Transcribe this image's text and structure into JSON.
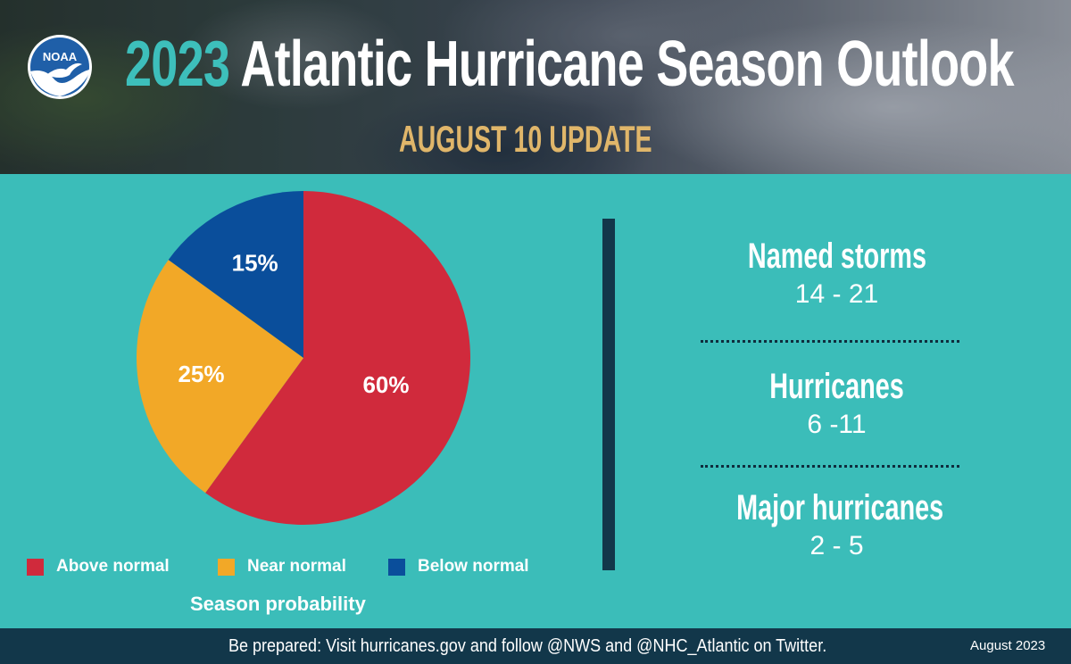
{
  "header": {
    "logo_text": "NOAA",
    "title_year": "2023",
    "title_rest": "Atlantic Hurricane Season Outlook",
    "subtitle": "AUGUST 10 UPDATE"
  },
  "chart_data": {
    "type": "pie",
    "title": "Season probability",
    "slices": [
      {
        "label": "Above normal",
        "value": 60,
        "display": "60%",
        "color": "#d02a3c"
      },
      {
        "label": "Near normal",
        "value": 25,
        "display": "25%",
        "color": "#f2a827"
      },
      {
        "label": "Below normal",
        "value": 15,
        "display": "15%",
        "color": "#0a4e9b"
      }
    ],
    "legend_position": "bottom"
  },
  "stats": [
    {
      "label": "Named storms",
      "value": "14 - 21"
    },
    {
      "label": "Hurricanes",
      "value": "6 -11"
    },
    {
      "label": "Major hurricanes",
      "value": "2 - 5"
    }
  ],
  "footer": {
    "text": "Be prepared: Visit hurricanes.gov and follow @NWS and @NHC_Atlantic on Twitter.",
    "date": "August 2023"
  },
  "colors": {
    "background": "#3bbdb9",
    "divider": "#12374a",
    "subtitle": "#e0b66a",
    "year": "#3dbfbb"
  }
}
